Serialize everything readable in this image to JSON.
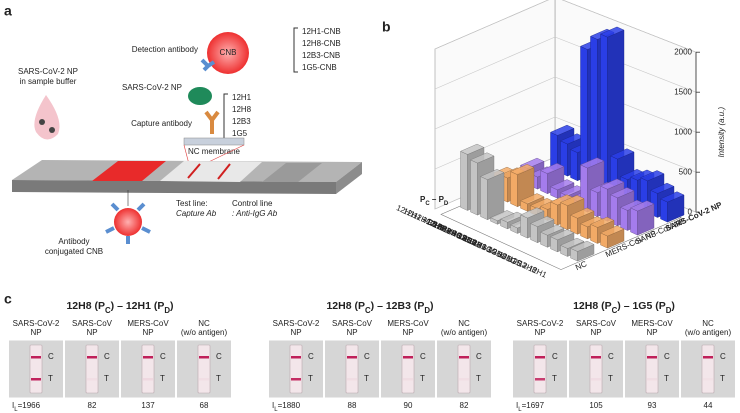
{
  "panel_labels": [
    "a",
    "b",
    "c"
  ],
  "panel_a": {
    "sample": [
      "SARS-CoV-2 NP",
      "in sample buffer"
    ],
    "detection_antibody": "Detection antibody",
    "cnb": "CNB",
    "detection_list": [
      "12H1-CNB",
      "12H8-CNB",
      "12B3-CNB",
      "1G5-CNB"
    ],
    "antigen": "SARS-CoV-2 NP",
    "capture_list": [
      "12H1",
      "12H8",
      "12B3",
      "1G5"
    ],
    "capture_antibody": "Capture antibody",
    "membrane": "NC membrane",
    "conjugate": [
      "Antibody",
      "conjugated CNB"
    ],
    "test_line": [
      "Test line:",
      "Capture Ab"
    ],
    "control_line": [
      "Control line",
      ": Anti-IgG Ab"
    ]
  },
  "chart_data": {
    "type": "bar3d",
    "ylabel": "Intensity (a.u.)",
    "category_axis_label": [
      {
        "text": "P"
      },
      {
        "sub": "C"
      },
      {
        "text": " – P"
      },
      {
        "sub": "D"
      }
    ],
    "categories": [
      "12H1 – 1G5",
      "12H1 – 12B3",
      "12H1 – 12H8",
      "12H8 – 1G5",
      "12H8 – 12B3",
      "12H8 – 12H1",
      "12B3 – 1G5",
      "12B3 – 12H8",
      "12B3 – 12H1",
      "1G5 – 12B3",
      "1G5 – 12H8",
      "1G5 – 12H1"
    ],
    "bold_categories": [
      false,
      false,
      false,
      true,
      true,
      true,
      false,
      false,
      false,
      false,
      false,
      false
    ],
    "series": [
      {
        "name": "SARS-CoV-2 NP",
        "color": "#2a3ee6",
        "bold": true,
        "values": [
          450,
          400,
          350,
          1697,
          1880,
          1966,
          500,
          300,
          350,
          400,
          300,
          250
        ]
      },
      {
        "name": "SARS-CoV NP",
        "color": "#a47cec",
        "bold": false,
        "values": [
          200,
          150,
          250,
          105,
          88,
          82,
          550,
          300,
          400,
          350,
          250,
          300
        ]
      },
      {
        "name": "MERS-CoV NP",
        "color": "#f2aa66",
        "bold": false,
        "values": [
          250,
          300,
          400,
          93,
          90,
          137,
          250,
          300,
          200,
          150,
          200,
          150
        ]
      },
      {
        "name": "NC",
        "color": "#c4c4c4",
        "bold": false,
        "values": [
          700,
          650,
          500,
          44,
          82,
          68,
          250,
          200,
          150,
          150,
          100,
          120
        ]
      }
    ],
    "ylim": [
      0,
      2000
    ],
    "yticks": [
      0,
      500,
      1000,
      1500,
      2000
    ],
    "grid": true
  },
  "panel_c": {
    "columns": [
      [
        "SARS-CoV-2",
        "NP"
      ],
      [
        "SARS-CoV",
        "NP"
      ],
      [
        "MERS-CoV",
        "NP"
      ],
      [
        "NC",
        "(w/o antigen)"
      ]
    ],
    "line_labels": [
      "C",
      "T"
    ],
    "first_prefix": [
      {
        "text": "I"
      },
      {
        "sub": "L"
      },
      {
        "text": "="
      }
    ],
    "groups": [
      {
        "title": [
          {
            "text": "12H8 (P"
          },
          {
            "sub": "C"
          },
          {
            "text": ") – 12H1 (P"
          },
          {
            "sub": "D"
          },
          {
            "text": ")"
          }
        ],
        "values": [
          1966,
          82,
          137,
          68
        ]
      },
      {
        "title": [
          {
            "text": "12H8 (P"
          },
          {
            "sub": "C"
          },
          {
            "text": ") – 12B3 (P"
          },
          {
            "sub": "D"
          },
          {
            "text": ")"
          }
        ],
        "values": [
          1880,
          88,
          90,
          82
        ]
      },
      {
        "title": [
          {
            "text": "12H8 (P"
          },
          {
            "sub": "C"
          },
          {
            "text": ") – 1G5 (P"
          },
          {
            "sub": "D"
          },
          {
            "text": ")"
          }
        ],
        "values": [
          1697,
          105,
          93,
          44
        ]
      }
    ]
  }
}
